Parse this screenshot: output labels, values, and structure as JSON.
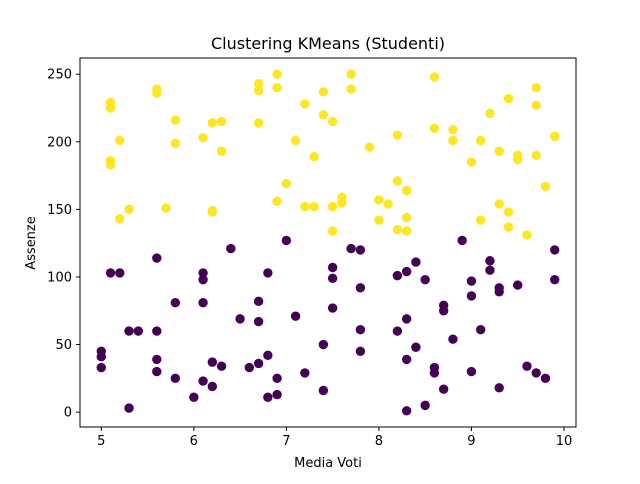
{
  "chart_data": {
    "type": "scatter",
    "title": "Clustering KMeans (Studenti)",
    "xlabel": "Media Voti",
    "ylabel": "Assenze",
    "xlim": [
      4.77,
      10.13
    ],
    "ylim": [
      -11,
      262
    ],
    "xticks": [
      5,
      6,
      7,
      8,
      9,
      10
    ],
    "yticks": [
      0,
      50,
      100,
      150,
      200,
      250
    ],
    "grid": false,
    "legend": "none",
    "colors": {
      "cluster_0": "#440154",
      "cluster_1": "#fde725"
    },
    "series": [
      {
        "x": [
          5.0,
          5.0,
          5.0,
          5.1,
          5.2,
          5.3,
          5.3,
          5.4,
          5.6,
          5.6,
          5.6,
          5.6,
          5.8,
          5.8,
          6.0,
          6.1,
          6.1,
          6.1,
          6.1,
          6.2,
          6.2,
          6.3,
          6.4,
          6.5,
          6.6,
          6.7,
          6.7,
          6.7,
          6.8,
          6.8,
          6.8,
          6.9,
          6.9,
          7.0,
          7.1,
          7.2,
          7.4,
          7.4,
          7.5,
          7.5,
          7.5,
          7.7,
          7.8,
          7.8,
          7.8,
          7.8,
          8.2,
          8.2,
          8.3,
          8.3,
          8.3,
          8.3,
          8.4,
          8.4,
          8.5,
          8.5,
          8.6,
          8.6,
          8.7,
          8.7,
          8.7,
          8.8,
          8.9,
          9.0,
          9.0,
          9.0,
          9.1,
          9.2,
          9.2,
          9.3,
          9.3,
          9.3,
          9.5,
          9.6,
          9.7,
          9.8,
          9.9,
          9.9
        ],
        "y": [
          45,
          41,
          33,
          103,
          103,
          60,
          3,
          60,
          114,
          60,
          39,
          30,
          81,
          25,
          11,
          103,
          98,
          81,
          23,
          37,
          19,
          34,
          121,
          69,
          33,
          82,
          67,
          36,
          103,
          42,
          11,
          25,
          13,
          127,
          71,
          29,
          50,
          16,
          107,
          99,
          77,
          121,
          120,
          92,
          61,
          45,
          101,
          60,
          104,
          69,
          39,
          1,
          111,
          48,
          98,
          5,
          33,
          29,
          79,
          75,
          17,
          54,
          127,
          97,
          86,
          30,
          61,
          112,
          105,
          92,
          89,
          18,
          94,
          34,
          29,
          25,
          120,
          98
        ]
      },
      {
        "x": [
          5.1,
          5.1,
          5.1,
          5.1,
          5.2,
          5.2,
          5.3,
          5.6,
          5.6,
          5.7,
          5.8,
          5.8,
          6.1,
          6.2,
          6.2,
          6.2,
          6.3,
          6.3,
          6.7,
          6.7,
          6.7,
          6.9,
          6.9,
          6.9,
          7.0,
          7.1,
          7.2,
          7.2,
          7.3,
          7.3,
          7.4,
          7.4,
          7.5,
          7.5,
          7.5,
          7.6,
          7.6,
          7.7,
          7.7,
          7.9,
          8.0,
          8.0,
          8.1,
          8.2,
          8.2,
          8.2,
          8.3,
          8.3,
          8.3,
          8.6,
          8.6,
          8.8,
          8.8,
          9.0,
          9.1,
          9.1,
          9.2,
          9.3,
          9.3,
          9.4,
          9.4,
          9.4,
          9.5,
          9.5,
          9.6,
          9.7,
          9.7,
          9.7,
          9.8,
          9.9
        ],
        "y": [
          229,
          225,
          186,
          183,
          201,
          143,
          150,
          239,
          236,
          151,
          216,
          199,
          203,
          214,
          149,
          148,
          215,
          193,
          243,
          238,
          214,
          250,
          240,
          156,
          169,
          201,
          228,
          152,
          189,
          152,
          237,
          220,
          215,
          152,
          134,
          159,
          155,
          250,
          239,
          196,
          157,
          142,
          154,
          205,
          171,
          135,
          164,
          144,
          134,
          248,
          210,
          209,
          201,
          185,
          201,
          142,
          221,
          193,
          154,
          232,
          148,
          137,
          190,
          187,
          131,
          240,
          227,
          190,
          167,
          204
        ]
      }
    ]
  }
}
